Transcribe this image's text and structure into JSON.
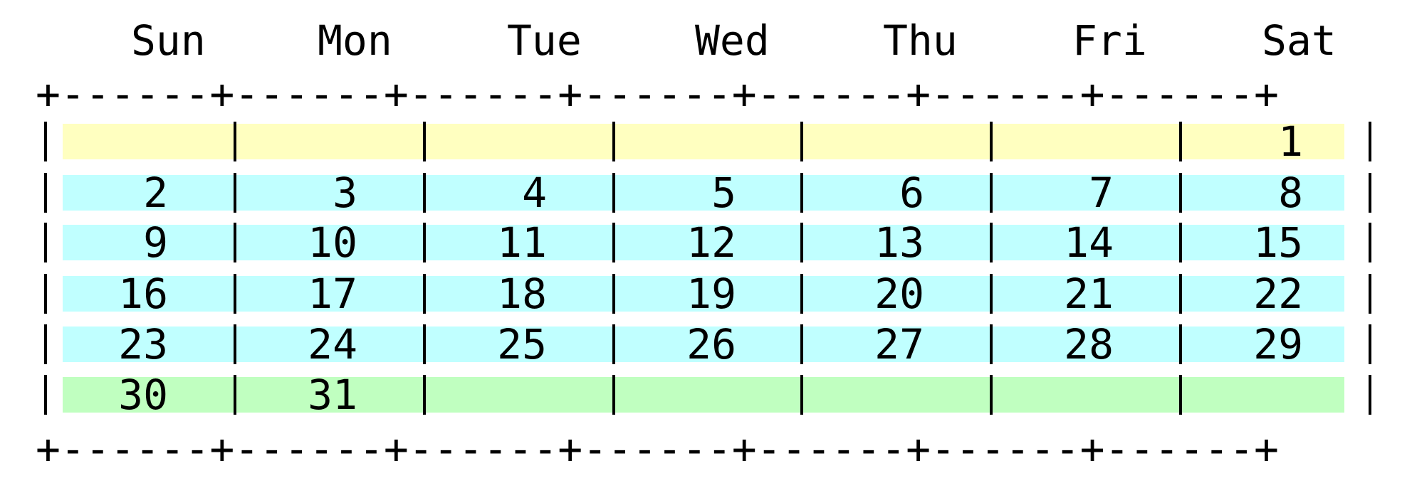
{
  "calendar": {
    "headers": [
      "Sun",
      "Mon",
      "Tue",
      "Wed",
      "Thu",
      "Fri",
      "Sat"
    ],
    "border_line": "+------+------+------+------+------+------+------+",
    "weeks": [
      [
        "",
        "",
        "",
        "",
        "",
        "",
        "1"
      ],
      [
        "2",
        "3",
        "4",
        "5",
        "6",
        "7",
        "8"
      ],
      [
        "9",
        "10",
        "11",
        "12",
        "13",
        "14",
        "15"
      ],
      [
        "16",
        "17",
        "18",
        "19",
        "20",
        "21",
        "22"
      ],
      [
        "23",
        "24",
        "25",
        "26",
        "27",
        "28",
        "29"
      ],
      [
        "30",
        "31",
        "",
        "",
        "",
        "",
        ""
      ]
    ]
  },
  "colors": {
    "first_week": "#ffffc0",
    "middle_weeks": "#c0ffff",
    "last_week": "#c0ffc0"
  }
}
